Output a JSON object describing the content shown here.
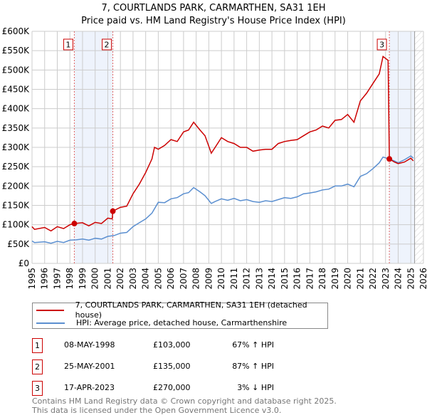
{
  "title_line1": "7, COURTLANDS PARK, CARMARTHEN, SA31 1EH",
  "title_line2": "Price paid vs. HM Land Registry's House Price Index (HPI)",
  "chart_data": {
    "type": "line",
    "title": "7, COURTLANDS PARK, CARMARTHEN, SA31 1EH — Price paid vs. HM Land Registry's House Price Index (HPI)",
    "xlim": [
      1995,
      2026
    ],
    "ylim": [
      0,
      600000
    ],
    "x_ticks": [
      "1995",
      "1996",
      "1997",
      "1998",
      "1999",
      "2000",
      "2001",
      "2002",
      "2003",
      "2004",
      "2005",
      "2006",
      "2007",
      "2008",
      "2009",
      "2010",
      "2011",
      "2012",
      "2013",
      "2014",
      "2015",
      "2016",
      "2017",
      "2018",
      "2019",
      "2020",
      "2021",
      "2022",
      "2023",
      "2024",
      "2025",
      "2026"
    ],
    "y_ticks": [
      {
        "v": 0,
        "l": "£0"
      },
      {
        "v": 50000,
        "l": "£50K"
      },
      {
        "v": 100000,
        "l": "£100K"
      },
      {
        "v": 150000,
        "l": "£150K"
      },
      {
        "v": 200000,
        "l": "£200K"
      },
      {
        "v": 250000,
        "l": "£250K"
      },
      {
        "v": 300000,
        "l": "£300K"
      },
      {
        "v": 350000,
        "l": "£350K"
      },
      {
        "v": 400000,
        "l": "£400K"
      },
      {
        "v": 450000,
        "l": "£450K"
      },
      {
        "v": 500000,
        "l": "£500K"
      },
      {
        "v": 550000,
        "l": "£550K"
      },
      {
        "v": 600000,
        "l": "£600K"
      }
    ],
    "grid": true,
    "colors": {
      "property": "#cc0000",
      "hpi": "#5b8fd0",
      "shade": "#eef3fc"
    },
    "series": [
      {
        "name": "7, COURTLANDS PARK, CARMARTHEN, SA31 1EH (detached house)",
        "color": "#cc0000",
        "x": [
          1995,
          1995.2,
          1996,
          1996.5,
          1997,
          1997.5,
          1998,
          1998.35,
          1999,
          1999.5,
          2000,
          2000.5,
          2001,
          2001.35,
          2001.4,
          2002,
          2002.5,
          2003,
          2003.5,
          2004,
          2004.5,
          2004.7,
          2005,
          2005.5,
          2006,
          2006.5,
          2007,
          2007.4,
          2007.8,
          2008.3,
          2008.7,
          2009.2,
          2009.5,
          2010,
          2010.5,
          2011,
          2011.5,
          2012,
          2012.5,
          2013,
          2013.5,
          2014,
          2014.5,
          2015,
          2015.5,
          2016,
          2016.5,
          2017,
          2017.5,
          2018,
          2018.5,
          2019,
          2019.5,
          2020,
          2020.5,
          2021,
          2021.5,
          2022,
          2022.5,
          2022.8,
          2023.2,
          2023.3,
          2023.7,
          2024,
          2024.5,
          2025,
          2025.2
        ],
        "y": [
          95000,
          88000,
          93000,
          84000,
          95000,
          90000,
          100000,
          103000,
          105000,
          97000,
          106000,
          103000,
          117000,
          115000,
          135000,
          145000,
          148000,
          180000,
          205000,
          235000,
          270000,
          300000,
          295000,
          305000,
          320000,
          315000,
          340000,
          345000,
          365000,
          345000,
          330000,
          285000,
          300000,
          325000,
          315000,
          310000,
          300000,
          300000,
          290000,
          293000,
          295000,
          295000,
          310000,
          315000,
          318000,
          320000,
          330000,
          340000,
          345000,
          355000,
          350000,
          370000,
          372000,
          385000,
          365000,
          420000,
          440000,
          465000,
          490000,
          535000,
          525000,
          270000,
          262000,
          258000,
          262000,
          272000,
          265000
        ]
      },
      {
        "name": "HPI: Average price, detached house, Carmarthenshire",
        "color": "#5b8fd0",
        "x": [
          1995,
          1995.2,
          1996,
          1996.5,
          1997,
          1997.5,
          1998,
          1998.5,
          1999,
          1999.5,
          2000,
          2000.5,
          2001,
          2001.5,
          2002,
          2002.5,
          2003,
          2003.5,
          2004,
          2004.5,
          2005,
          2005.5,
          2006,
          2006.5,
          2007,
          2007.4,
          2007.8,
          2008.3,
          2008.7,
          2009.2,
          2009.5,
          2010,
          2010.5,
          2011,
          2011.5,
          2012,
          2012.5,
          2013,
          2013.5,
          2014,
          2014.5,
          2015,
          2015.5,
          2016,
          2016.5,
          2017,
          2017.5,
          2018,
          2018.5,
          2019,
          2019.5,
          2020,
          2020.5,
          2021,
          2021.5,
          2022,
          2022.5,
          2022.8,
          2023.3,
          2023.7,
          2024,
          2024.5,
          2025,
          2025.2
        ],
        "y": [
          58000,
          54000,
          56000,
          52000,
          57000,
          54000,
          60000,
          61000,
          63000,
          60000,
          65000,
          63000,
          70000,
          72000,
          78000,
          80000,
          95000,
          105000,
          115000,
          130000,
          158000,
          157000,
          167000,
          170000,
          180000,
          183000,
          196000,
          185000,
          175000,
          155000,
          160000,
          167000,
          163000,
          168000,
          162000,
          165000,
          160000,
          158000,
          162000,
          160000,
          165000,
          170000,
          168000,
          172000,
          180000,
          182000,
          185000,
          190000,
          192000,
          200000,
          200000,
          205000,
          198000,
          225000,
          232000,
          245000,
          260000,
          275000,
          270000,
          265000,
          260000,
          268000,
          278000,
          272000
        ]
      }
    ],
    "sales": [
      {
        "id": "1",
        "x": 1998.35,
        "y": 103000
      },
      {
        "id": "2",
        "x": 2001.4,
        "y": 135000
      },
      {
        "id": "3",
        "x": 2023.3,
        "y": 270000
      }
    ],
    "shaded_ranges": [
      [
        1998.35,
        2001.4
      ],
      [
        2023.3,
        2025.3
      ]
    ],
    "forecast_hatch_from": 2025.3
  },
  "legend": {
    "property": "7, COURTLANDS PARK, CARMARTHEN, SA31 1EH (detached house)",
    "hpi": "HPI: Average price, detached house, Carmarthenshire"
  },
  "sales_table": [
    {
      "id": "1",
      "date": "08-MAY-1998",
      "price": "£103,000",
      "hpi": "67% ↑ HPI"
    },
    {
      "id": "2",
      "date": "25-MAY-2001",
      "price": "£135,000",
      "hpi": "87% ↑ HPI"
    },
    {
      "id": "3",
      "date": "17-APR-2023",
      "price": "£270,000",
      "hpi": "3% ↓ HPI"
    }
  ],
  "footer": {
    "line1": "Contains HM Land Registry data © Crown copyright and database right 2025.",
    "line2": "This data is licensed under the Open Government Licence v3.0."
  }
}
